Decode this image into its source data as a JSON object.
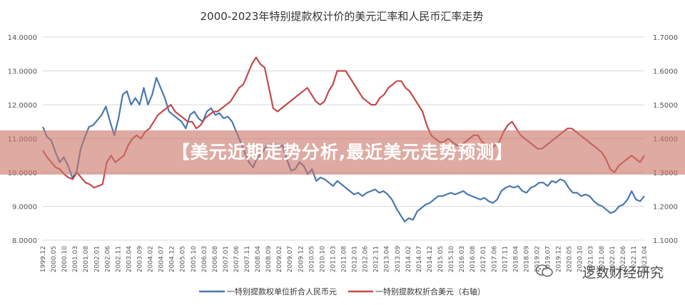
{
  "chart_data": {
    "type": "line",
    "title": "2000-2023年特别提款权计价的美元汇率和人民币汇率走势",
    "x_ticks": [
      "1999.12",
      "2000.05",
      "2000.10",
      "2001.03",
      "2001.08",
      "2002.01",
      "2002.06",
      "2002.11",
      "2003.04",
      "2003.09",
      "2004.02",
      "2004.07",
      "2004.12",
      "2005.05",
      "2005.10",
      "2006.03",
      "2006.08",
      "2007.01",
      "2007.06",
      "2007.11",
      "2008.04",
      "2008.09",
      "2009.02",
      "2009.07",
      "2009.12",
      "2010.05",
      "2010.10",
      "2011.03",
      "2011.08",
      "2012.01",
      "2012.06",
      "2012.11",
      "2013.04",
      "2013.09",
      "2014.02",
      "2014.07",
      "2014.12",
      "2015.05",
      "2015.10",
      "2016.03",
      "2016.08",
      "2017.01",
      "2017.06",
      "2017.11",
      "2018.04",
      "2018.09",
      "2019.02",
      "2019.07",
      "2019.12",
      "2020.05",
      "2020.10",
      "2021.03",
      "2021.08",
      "2022.01",
      "2022.06",
      "2022.11",
      "2023.04"
    ],
    "y_left": {
      "min": 8.0,
      "max": 14.0,
      "ticks": [
        "8.0000",
        "9.0000",
        "10.0000",
        "11.0000",
        "12.0000",
        "13.0000",
        "14.0000"
      ]
    },
    "y_right": {
      "min": 1.1,
      "max": 1.7,
      "ticks": [
        "1.1000",
        "1.2000",
        "1.3000",
        "1.4000",
        "1.5000",
        "1.6000",
        "1.7000"
      ]
    },
    "grid": true,
    "legend_position": "bottom",
    "series": [
      {
        "name": "一特别提款权单位折合人民币元",
        "axis": "left",
        "color": "#4a78b0",
        "values": [
          11.35,
          11.05,
          10.95,
          10.6,
          10.3,
          10.45,
          10.2,
          9.85,
          10.0,
          10.7,
          11.05,
          11.35,
          11.4,
          11.55,
          11.7,
          11.95,
          11.5,
          11.1,
          11.6,
          12.3,
          12.4,
          12.0,
          12.2,
          12.0,
          12.5,
          12.0,
          12.3,
          12.8,
          12.5,
          12.2,
          11.8,
          11.7,
          11.6,
          11.5,
          11.3,
          11.7,
          11.8,
          11.6,
          11.5,
          11.8,
          11.9,
          11.7,
          11.75,
          11.6,
          11.65,
          11.5,
          11.2,
          10.9,
          10.6,
          10.3,
          10.15,
          10.45,
          10.55,
          10.75,
          10.8,
          10.85,
          10.75,
          10.8,
          10.4,
          10.05,
          10.1,
          10.3,
          10.2,
          9.95,
          10.1,
          9.75,
          9.85,
          9.8,
          9.7,
          9.6,
          9.75,
          9.65,
          9.55,
          9.45,
          9.35,
          9.4,
          9.3,
          9.4,
          9.45,
          9.5,
          9.4,
          9.45,
          9.35,
          9.2,
          8.95,
          8.75,
          8.55,
          8.65,
          8.6,
          8.85,
          8.95,
          9.05,
          9.1,
          9.2,
          9.3,
          9.3,
          9.35,
          9.4,
          9.35,
          9.4,
          9.45,
          9.35,
          9.3,
          9.25,
          9.2,
          9.25,
          9.15,
          9.1,
          9.2,
          9.45,
          9.55,
          9.6,
          9.55,
          9.6,
          9.45,
          9.4,
          9.55,
          9.6,
          9.7,
          9.7,
          9.6,
          9.75,
          9.7,
          9.8,
          9.75,
          9.55,
          9.4,
          9.4,
          9.3,
          9.35,
          9.3,
          9.15,
          9.05,
          9.0,
          8.9,
          8.8,
          8.85,
          9.0,
          9.05,
          9.2,
          9.45,
          9.2,
          9.15,
          9.3
        ]
      },
      {
        "name": "一特别提款权折合美元（右轴）",
        "axis": "right",
        "color": "#c34a4a",
        "values": [
          1.365,
          1.345,
          1.33,
          1.315,
          1.31,
          1.295,
          1.285,
          1.28,
          1.3,
          1.285,
          1.27,
          1.265,
          1.255,
          1.26,
          1.265,
          1.33,
          1.35,
          1.33,
          1.34,
          1.35,
          1.38,
          1.4,
          1.41,
          1.4,
          1.42,
          1.43,
          1.45,
          1.47,
          1.48,
          1.49,
          1.5,
          1.48,
          1.47,
          1.46,
          1.45,
          1.45,
          1.43,
          1.44,
          1.46,
          1.47,
          1.48,
          1.48,
          1.49,
          1.5,
          1.51,
          1.53,
          1.55,
          1.56,
          1.59,
          1.62,
          1.64,
          1.62,
          1.61,
          1.55,
          1.49,
          1.48,
          1.49,
          1.5,
          1.51,
          1.52,
          1.53,
          1.54,
          1.55,
          1.53,
          1.51,
          1.5,
          1.51,
          1.54,
          1.56,
          1.6,
          1.6,
          1.6,
          1.58,
          1.56,
          1.54,
          1.52,
          1.51,
          1.5,
          1.5,
          1.52,
          1.53,
          1.55,
          1.56,
          1.57,
          1.57,
          1.55,
          1.54,
          1.52,
          1.5,
          1.48,
          1.44,
          1.41,
          1.4,
          1.39,
          1.39,
          1.4,
          1.39,
          1.38,
          1.38,
          1.39,
          1.4,
          1.41,
          1.41,
          1.39,
          1.38,
          1.37,
          1.38,
          1.39,
          1.42,
          1.44,
          1.45,
          1.43,
          1.41,
          1.4,
          1.39,
          1.38,
          1.37,
          1.37,
          1.38,
          1.39,
          1.4,
          1.41,
          1.42,
          1.43,
          1.43,
          1.42,
          1.41,
          1.4,
          1.39,
          1.38,
          1.37,
          1.36,
          1.34,
          1.31,
          1.3,
          1.32,
          1.33,
          1.34,
          1.35,
          1.34,
          1.33,
          1.35
        ]
      }
    ]
  },
  "banner": {
    "text": "【美元近期走势分析,最近美元走势预测】"
  },
  "watermark": {
    "text": "逻数财经研究",
    "icon": "wechat-icon"
  }
}
